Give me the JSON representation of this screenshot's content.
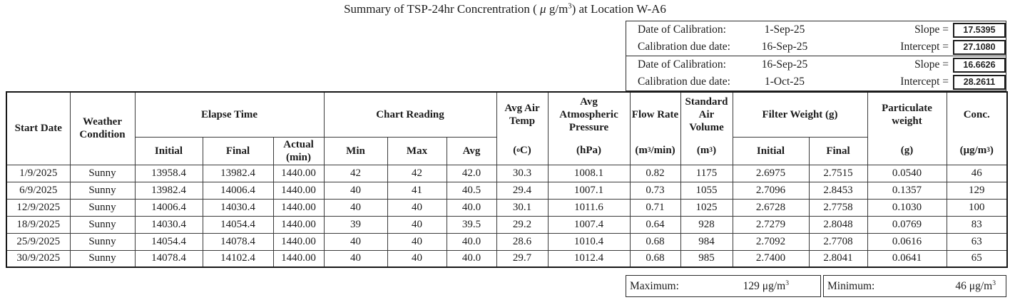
{
  "title": {
    "p1": "Summary of TSP-24hr Concrentration ( ",
    "mu": "μ",
    "p2": " g/m",
    "sup": "3",
    "p3": ") at Location W-A6"
  },
  "calibration": [
    {
      "date_label": "Date of Calibration:",
      "date": "1-Sep-25",
      "slope_label": "Slope =",
      "slope": "17.5395",
      "due_label": "Calibration due date:",
      "due": "16-Sep-25",
      "intercept_label": "Intercept =",
      "intercept": "27.1080"
    },
    {
      "date_label": "Date of Calibration:",
      "date": "16-Sep-25",
      "slope_label": "Slope =",
      "slope": "16.6626",
      "due_label": "Calibration due date:",
      "due": "1-Oct-25",
      "intercept_label": "Intercept =",
      "intercept": "28.2611"
    }
  ],
  "table": {
    "header": {
      "start_date": "Start Date",
      "weather": "Weather Condition",
      "elapse_time": "Elapse Time",
      "initial": "Initial",
      "final": "Final",
      "actual": "Actual (min)",
      "chart_reading": "Chart Reading",
      "min": "Min",
      "max": "Max",
      "avg": "Avg",
      "avg_air_temp": "Avg Air Temp",
      "temp_unit_pre": "(",
      "temp_unit_sup": "o",
      "temp_unit_post": "C)",
      "avg_atm_pressure": "Avg Atmospheric Pressure",
      "pressure_unit": "(hPa)",
      "flow_rate": "Flow Rate",
      "flow_unit_pre": "(m",
      "flow_unit_sup": "3",
      "flow_unit_post": "/min)",
      "std_air_volume": "Standard Air Volume",
      "volume_unit_pre": "(m",
      "volume_unit_sup": "3",
      "volume_unit_post": ")",
      "filter_weight": "Filter Weight (g)",
      "fw_initial": "Initial",
      "fw_final": "Final",
      "particulate": "Particulate weight",
      "particulate_unit": "(g)",
      "conc": "Conc.",
      "conc_unit_pre": "(μg/m",
      "conc_unit_sup": "3",
      "conc_unit_post": ")"
    },
    "column_ids": [
      "start-date",
      "weather-condition",
      "elapse-initial",
      "elapse-final",
      "elapse-actual",
      "chart-min",
      "chart-max",
      "chart-avg",
      "avg-air-temp",
      "avg-atm-pressure",
      "flow-rate",
      "std-air-volume",
      "filter-initial",
      "filter-final",
      "particulate-weight",
      "conc"
    ],
    "rows": [
      [
        "1/9/2025",
        "Sunny",
        "13958.4",
        "13982.4",
        "1440.00",
        "42",
        "42",
        "42.0",
        "30.3",
        "1008.1",
        "0.82",
        "1175",
        "2.6975",
        "2.7515",
        "0.0540",
        "46"
      ],
      [
        "6/9/2025",
        "Sunny",
        "13982.4",
        "14006.4",
        "1440.00",
        "40",
        "41",
        "40.5",
        "29.4",
        "1007.1",
        "0.73",
        "1055",
        "2.7096",
        "2.8453",
        "0.1357",
        "129"
      ],
      [
        "12/9/2025",
        "Sunny",
        "14006.4",
        "14030.4",
        "1440.00",
        "40",
        "40",
        "40.0",
        "30.1",
        "1011.6",
        "0.71",
        "1025",
        "2.6728",
        "2.7758",
        "0.1030",
        "100"
      ],
      [
        "18/9/2025",
        "Sunny",
        "14030.4",
        "14054.4",
        "1440.00",
        "39",
        "40",
        "39.5",
        "29.2",
        "1007.4",
        "0.64",
        "928",
        "2.7279",
        "2.8048",
        "0.0769",
        "83"
      ],
      [
        "25/9/2025",
        "Sunny",
        "14054.4",
        "14078.4",
        "1440.00",
        "40",
        "40",
        "40.0",
        "28.6",
        "1010.4",
        "0.68",
        "984",
        "2.7092",
        "2.7708",
        "0.0616",
        "63"
      ],
      [
        "30/9/2025",
        "Sunny",
        "14078.4",
        "14102.4",
        "1440.00",
        "40",
        "40",
        "40.0",
        "29.7",
        "1012.4",
        "0.68",
        "985",
        "2.7400",
        "2.8041",
        "0.0641",
        "65"
      ]
    ]
  },
  "summary": {
    "max_label": "Maximum:",
    "max_value": "129",
    "max_unit": "μg/m",
    "max_unit_sup": "3",
    "min_label": "Minimum:",
    "min_value": "46",
    "min_unit": "μg/m",
    "min_unit_sup": "3"
  }
}
